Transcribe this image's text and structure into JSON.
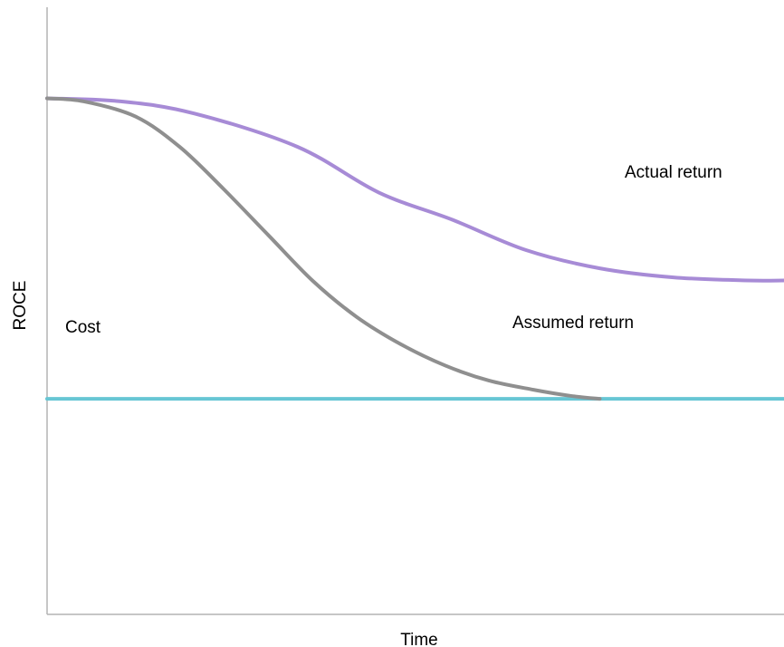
{
  "chart_data": {
    "type": "line",
    "xlabel": "Time",
    "ylabel": "ROCE",
    "xlim": [
      0,
      100
    ],
    "ylim": [
      0,
      100
    ],
    "grid": false,
    "series": [
      {
        "name": "Actual return",
        "color": "#a78bd6",
        "x": [
          0,
          10,
          20,
          34,
          45,
          55,
          65,
          75,
          85,
          95,
          100
        ],
        "values": [
          85,
          84.5,
          82.5,
          77,
          69.5,
          65,
          60,
          57,
          55.5,
          55,
          55
        ]
      },
      {
        "name": "Assumed return",
        "color": "#8f8f8f",
        "x": [
          0,
          5,
          12,
          18,
          24,
          30,
          36,
          42,
          48,
          54,
          60,
          66,
          71,
          75
        ],
        "values": [
          85,
          84.5,
          82,
          77,
          70,
          62.5,
          55,
          49,
          44.5,
          41,
          38.5,
          37,
          36,
          35.5
        ]
      },
      {
        "name": "Cost",
        "color": "#67c6d4",
        "x": [
          0,
          100
        ],
        "values": [
          35.5,
          35.5
        ]
      }
    ],
    "annotations": [
      {
        "text": "Actual return",
        "series": "Actual return"
      },
      {
        "text": "Assumed return",
        "series": "Assumed return"
      },
      {
        "text": "Cost",
        "series": "Cost"
      }
    ]
  }
}
